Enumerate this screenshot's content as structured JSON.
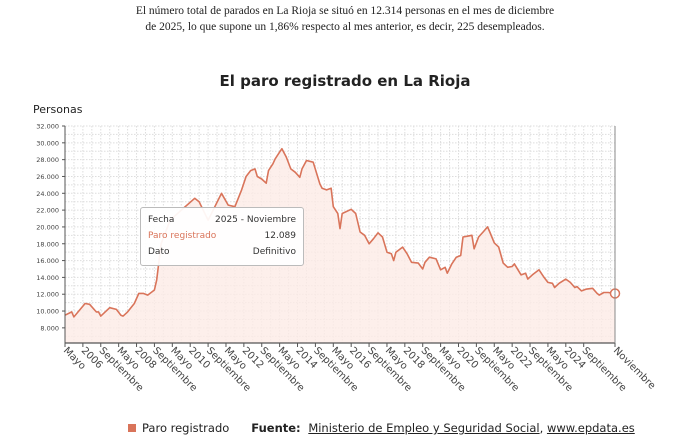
{
  "intro": {
    "line1": "El número total de parados en La Rioja se situó en 12.314 personas en el mes de diciembre",
    "line2": "de 2025, lo que supone un 1,86% respecto al mes anterior, es decir, 225 desempleados."
  },
  "tooltip": {
    "fecha_label": "Fecha",
    "fecha_value": "2025 - Noviembre",
    "series_label": "Paro registrado",
    "series_value": "12.089",
    "dato_label": "Dato",
    "dato_value": "Definitivo"
  },
  "legend": {
    "series": "Paro registrado",
    "source_label": "Fuente:",
    "source_link1": "Ministerio de Empleo y Seguridad Social",
    "separator": ",",
    "source_link2": "www.epdata.es"
  },
  "colors": {
    "line": "#d9745a",
    "fill": "#fdebe6",
    "tooltip_series": "#d9745a"
  },
  "chart_data": {
    "type": "area",
    "title": "El paro registrado en La Rioja",
    "ylabel": "Personas",
    "xlabel": "",
    "ylim": [
      6200,
      32000
    ],
    "xlim": [
      "2005-05",
      "2025-11"
    ],
    "grid": true,
    "legend_position": "bottom-left",
    "y_ticks": [
      "8.000",
      "10.000",
      "12.000",
      "14.000",
      "16.000",
      "18.000",
      "20.000",
      "22.000",
      "24.000",
      "26.000",
      "28.000",
      "30.000",
      "32.000"
    ],
    "x_ticks": [
      {
        "date": "2005-05",
        "label": "Mayo"
      },
      {
        "date": "2006-01",
        "label": "2006"
      },
      {
        "date": "2006-09",
        "label": "Septiembre"
      },
      {
        "date": "2007-05",
        "label": "Mayo"
      },
      {
        "date": "2008-01",
        "label": "2008"
      },
      {
        "date": "2008-09",
        "label": "Septiembre"
      },
      {
        "date": "2009-05",
        "label": "Mayo"
      },
      {
        "date": "2010-01",
        "label": "2010"
      },
      {
        "date": "2010-09",
        "label": "Septiembre"
      },
      {
        "date": "2011-05",
        "label": "Mayo"
      },
      {
        "date": "2012-01",
        "label": "2012"
      },
      {
        "date": "2012-09",
        "label": "Septiembre"
      },
      {
        "date": "2013-05",
        "label": "Mayo"
      },
      {
        "date": "2014-01",
        "label": "2014"
      },
      {
        "date": "2014-09",
        "label": "Septiembre"
      },
      {
        "date": "2015-05",
        "label": "Mayo"
      },
      {
        "date": "2016-01",
        "label": "2016"
      },
      {
        "date": "2016-09",
        "label": "Septiembre"
      },
      {
        "date": "2017-05",
        "label": "Mayo"
      },
      {
        "date": "2018-01",
        "label": "2018"
      },
      {
        "date": "2018-09",
        "label": "Septiembre"
      },
      {
        "date": "2019-05",
        "label": "Mayo"
      },
      {
        "date": "2020-01",
        "label": "2020"
      },
      {
        "date": "2020-09",
        "label": "Septiembre"
      },
      {
        "date": "2021-05",
        "label": "Mayo"
      },
      {
        "date": "2022-01",
        "label": "2022"
      },
      {
        "date": "2022-09",
        "label": "Septiembre"
      },
      {
        "date": "2023-05",
        "label": "Mayo"
      },
      {
        "date": "2024-01",
        "label": "2024"
      },
      {
        "date": "2024-09",
        "label": "Septiembre"
      },
      {
        "date": "2025-11",
        "label": "Noviembre"
      }
    ],
    "series": [
      {
        "name": "Paro registrado",
        "points": [
          [
            "2005-05",
            9500
          ],
          [
            "2005-08",
            9900
          ],
          [
            "2005-09",
            9300
          ],
          [
            "2006-02",
            10900
          ],
          [
            "2006-04",
            10800
          ],
          [
            "2006-07",
            9900
          ],
          [
            "2006-08",
            9900
          ],
          [
            "2006-09",
            9400
          ],
          [
            "2007-01",
            10400
          ],
          [
            "2007-04",
            10200
          ],
          [
            "2007-06",
            9500
          ],
          [
            "2007-07",
            9400
          ],
          [
            "2007-09",
            9900
          ],
          [
            "2007-12",
            10900
          ],
          [
            "2008-02",
            12100
          ],
          [
            "2008-04",
            12100
          ],
          [
            "2008-06",
            11900
          ],
          [
            "2008-09",
            12500
          ],
          [
            "2008-10",
            13700
          ],
          [
            "2008-12",
            18000
          ],
          [
            "2009-04",
            20800
          ],
          [
            "2009-09",
            22000
          ],
          [
            "2010-03",
            23400
          ],
          [
            "2010-05",
            23000
          ],
          [
            "2010-09",
            20800
          ],
          [
            "2011-03",
            24000
          ],
          [
            "2011-06",
            22600
          ],
          [
            "2011-09",
            22400
          ],
          [
            "2011-12",
            24400
          ],
          [
            "2012-02",
            26000
          ],
          [
            "2012-04",
            26700
          ],
          [
            "2012-06",
            26900
          ],
          [
            "2012-07",
            26000
          ],
          [
            "2012-09",
            25700
          ],
          [
            "2012-11",
            25200
          ],
          [
            "2012-12",
            26700
          ],
          [
            "2013-02",
            27500
          ],
          [
            "2013-03",
            28100
          ],
          [
            "2013-05",
            28900
          ],
          [
            "2013-06",
            29300
          ],
          [
            "2013-08",
            28300
          ],
          [
            "2013-10",
            26900
          ],
          [
            "2013-12",
            26500
          ],
          [
            "2014-02",
            25900
          ],
          [
            "2014-03",
            26900
          ],
          [
            "2014-05",
            27900
          ],
          [
            "2014-08",
            27700
          ],
          [
            "2014-11",
            25100
          ],
          [
            "2014-12",
            24600
          ],
          [
            "2015-02",
            24400
          ],
          [
            "2015-04",
            24600
          ],
          [
            "2015-05",
            22400
          ],
          [
            "2015-07",
            21600
          ],
          [
            "2015-08",
            19800
          ],
          [
            "2015-09",
            21600
          ],
          [
            "2016-01",
            22100
          ],
          [
            "2016-03",
            21600
          ],
          [
            "2016-05",
            19400
          ],
          [
            "2016-07",
            19000
          ],
          [
            "2016-09",
            18000
          ],
          [
            "2016-11",
            18600
          ],
          [
            "2017-01",
            19300
          ],
          [
            "2017-03",
            18800
          ],
          [
            "2017-05",
            17000
          ],
          [
            "2017-07",
            16800
          ],
          [
            "2017-08",
            16000
          ],
          [
            "2017-09",
            17000
          ],
          [
            "2017-12",
            17600
          ],
          [
            "2018-02",
            16800
          ],
          [
            "2018-04",
            15800
          ],
          [
            "2018-07",
            15700
          ],
          [
            "2018-09",
            15000
          ],
          [
            "2018-10",
            15800
          ],
          [
            "2018-12",
            16400
          ],
          [
            "2019-03",
            16200
          ],
          [
            "2019-05",
            14900
          ],
          [
            "2019-07",
            15200
          ],
          [
            "2019-08",
            14500
          ],
          [
            "2019-10",
            15600
          ],
          [
            "2019-12",
            16400
          ],
          [
            "2020-02",
            16600
          ],
          [
            "2020-03",
            18800
          ],
          [
            "2020-05",
            18900
          ],
          [
            "2020-07",
            19000
          ],
          [
            "2020-08",
            17400
          ],
          [
            "2020-10",
            18800
          ],
          [
            "2020-12",
            19400
          ],
          [
            "2021-02",
            20000
          ],
          [
            "2021-03",
            19400
          ],
          [
            "2021-05",
            18100
          ],
          [
            "2021-07",
            17600
          ],
          [
            "2021-09",
            15700
          ],
          [
            "2021-11",
            15200
          ],
          [
            "2022-01",
            15300
          ],
          [
            "2022-02",
            15600
          ],
          [
            "2022-05",
            14300
          ],
          [
            "2022-07",
            14500
          ],
          [
            "2022-08",
            13800
          ],
          [
            "2022-10",
            14300
          ],
          [
            "2023-01",
            14900
          ],
          [
            "2023-03",
            14100
          ],
          [
            "2023-05",
            13400
          ],
          [
            "2023-07",
            13300
          ],
          [
            "2023-08",
            12800
          ],
          [
            "2023-10",
            13300
          ],
          [
            "2024-01",
            13800
          ],
          [
            "2024-03",
            13400
          ],
          [
            "2024-05",
            12800
          ],
          [
            "2024-06",
            12900
          ],
          [
            "2024-08",
            12400
          ],
          [
            "2024-10",
            12600
          ],
          [
            "2025-01",
            12700
          ],
          [
            "2025-03",
            12100
          ],
          [
            "2025-04",
            11900
          ],
          [
            "2025-06",
            12200
          ],
          [
            "2025-08",
            12200
          ],
          [
            "2025-11",
            12089
          ]
        ]
      }
    ]
  }
}
